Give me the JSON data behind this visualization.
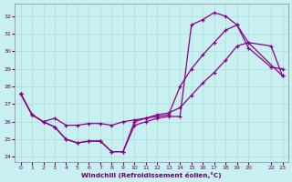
{
  "xlabel": "Windchill (Refroidissement éolien,°C)",
  "bg_color": "#c8f0f0",
  "grid_color": "#aadddd",
  "line_color": "#880088",
  "ylim": [
    23.7,
    32.7
  ],
  "yticks": [
    24,
    25,
    26,
    27,
    28,
    29,
    30,
    31,
    32
  ],
  "xticks": [
    0,
    1,
    2,
    3,
    4,
    5,
    6,
    7,
    8,
    9,
    10,
    11,
    12,
    13,
    14,
    15,
    16,
    17,
    18,
    19,
    20,
    22,
    23
  ],
  "xlim": [
    -0.5,
    23.5
  ],
  "line1_x": [
    0,
    1,
    2,
    3,
    4,
    5,
    6,
    7,
    8,
    9,
    10,
    11,
    12,
    13,
    14,
    15,
    16,
    17,
    18,
    19,
    20,
    22,
    23
  ],
  "line1_y": [
    27.6,
    26.4,
    26.0,
    26.2,
    25.8,
    25.8,
    25.9,
    25.9,
    25.8,
    26.0,
    26.1,
    26.2,
    26.3,
    26.4,
    28.0,
    29.0,
    29.8,
    30.5,
    31.2,
    31.5,
    30.5,
    30.3,
    28.6
  ],
  "line2_x": [
    0,
    1,
    2,
    3,
    4,
    5,
    6,
    7,
    8,
    9,
    10,
    11,
    12,
    13,
    14,
    15,
    16,
    17,
    18,
    19,
    20,
    22,
    23
  ],
  "line2_y": [
    27.6,
    26.4,
    26.0,
    25.7,
    25.0,
    24.8,
    24.9,
    24.9,
    24.3,
    24.3,
    25.8,
    26.0,
    26.2,
    26.3,
    26.3,
    31.5,
    31.8,
    32.2,
    32.0,
    31.5,
    30.2,
    29.1,
    29.0
  ],
  "line3_x": [
    0,
    1,
    2,
    3,
    4,
    5,
    6,
    7,
    8,
    9,
    10,
    11,
    12,
    13,
    14,
    15,
    16,
    17,
    18,
    19,
    20,
    22,
    23
  ],
  "line3_y": [
    27.6,
    26.4,
    26.0,
    25.7,
    25.0,
    24.8,
    24.9,
    24.9,
    24.3,
    24.3,
    26.0,
    26.2,
    26.4,
    26.5,
    26.8,
    27.5,
    28.2,
    28.8,
    29.5,
    30.3,
    30.5,
    null,
    28.6
  ]
}
